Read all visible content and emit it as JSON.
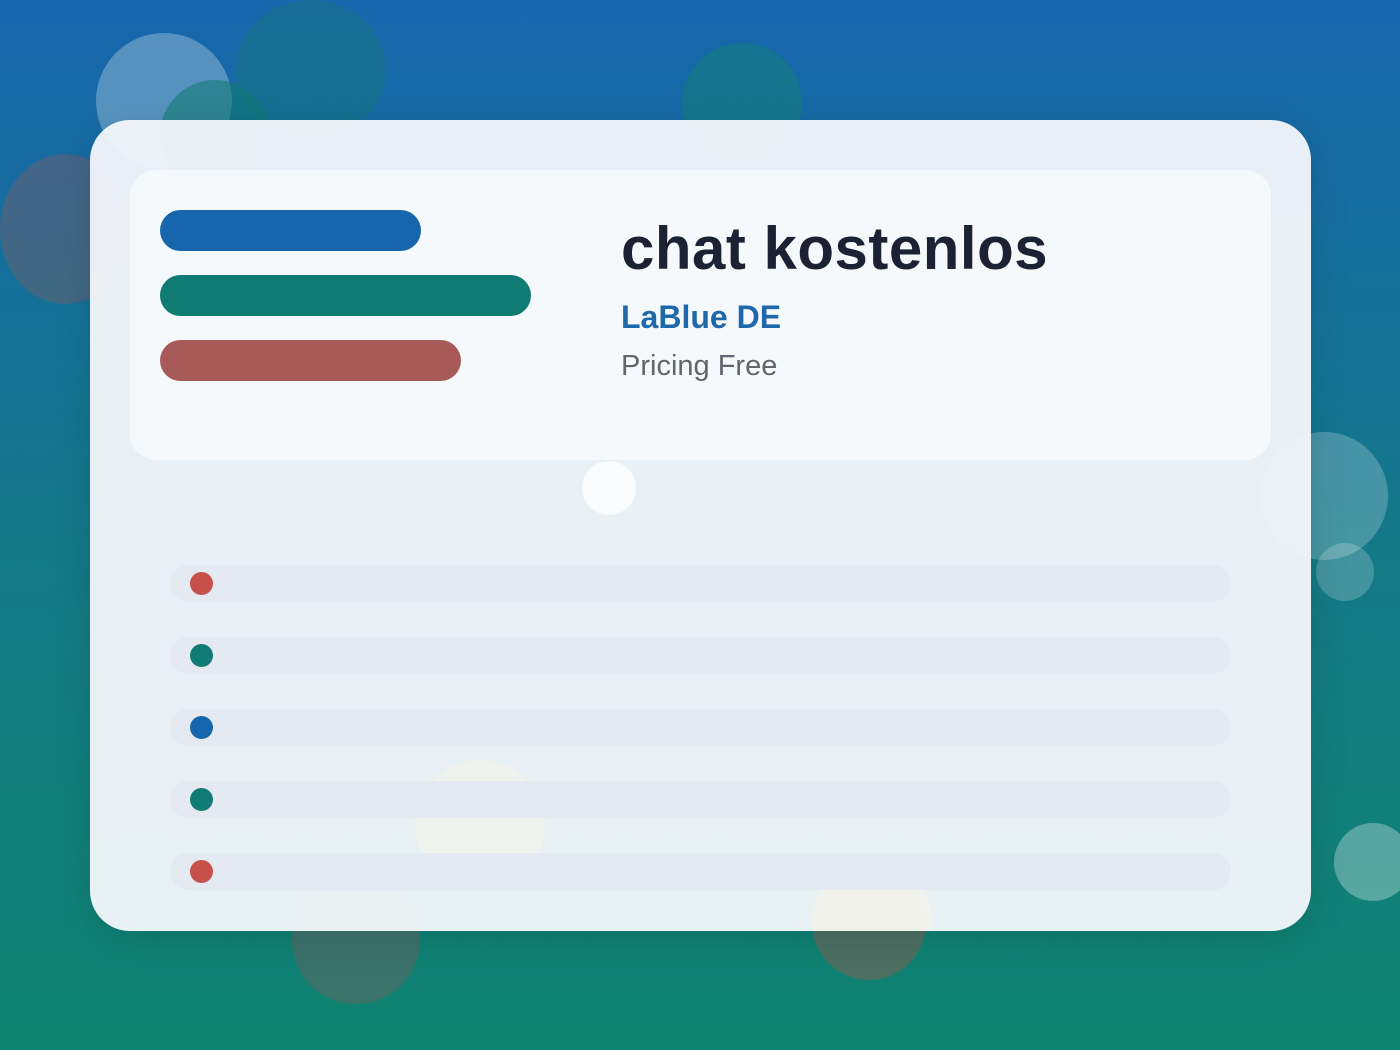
{
  "header": {
    "title": "chat kostenlos",
    "subtitle": "LaBlue DE",
    "pricing": "Pricing Free"
  },
  "colors": {
    "blue": "#1766ad",
    "teal": "#0f7b72",
    "red": "#c7504a",
    "title_text": "#1a2233",
    "subtitle_text": "#1f68aa",
    "muted_text": "#5f6670"
  },
  "list_rows": [
    {
      "dot_color": "#c7504a"
    },
    {
      "dot_color": "#0f7b72"
    },
    {
      "dot_color": "#1766ad"
    },
    {
      "dot_color": "#0f7b72"
    },
    {
      "dot_color": "#c7504a"
    }
  ]
}
